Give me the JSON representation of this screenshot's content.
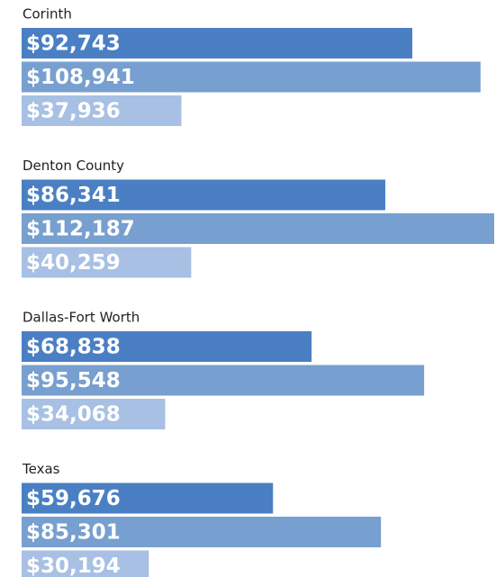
{
  "chart_data": {
    "type": "bar",
    "orientation": "horizontal",
    "categories": [
      "Corinth",
      "Denton County",
      "Dallas-Fort Worth",
      "Texas"
    ],
    "series": [
      {
        "color": "#4a80c3",
        "values": [
          92743,
          86341,
          68838,
          59676
        ],
        "value_labels": [
          "$92,743",
          "$86,341",
          "$68,838",
          "$59,676"
        ]
      },
      {
        "color": "#779fcf",
        "values": [
          108941,
          112187,
          95548,
          85301
        ],
        "value_labels": [
          "$108,941",
          "$112,187",
          "$95,548",
          "$85,301"
        ]
      },
      {
        "color": "#a7c0e3",
        "values": [
          37936,
          40259,
          34068,
          30194
        ],
        "value_labels": [
          "$37,936",
          "$40,259",
          "$34,068",
          "$30,194"
        ]
      }
    ]
  }
}
